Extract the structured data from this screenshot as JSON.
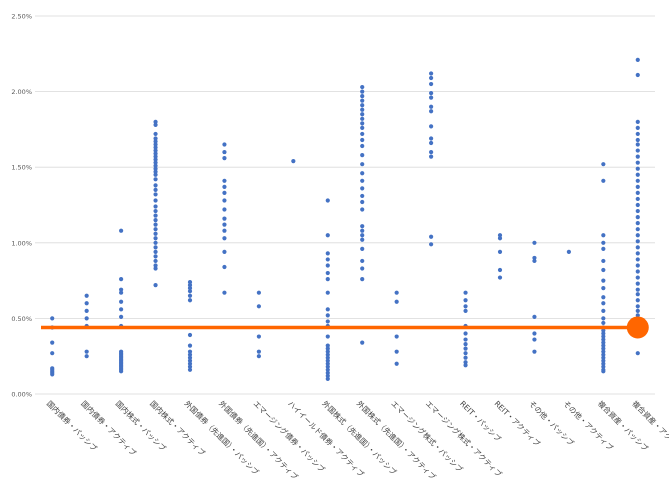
{
  "chart_data": {
    "type": "scatter",
    "categories": [
      "国内債券・パッシブ",
      "国内債券・アクティブ",
      "国内株式・パッシブ",
      "国内株式・アクティブ",
      "外国債券（先進国）・パッシブ",
      "外国債券（先進国）・アクティブ",
      "エマージング債券・パッシブ",
      "ハイイールド債券・アクティブ",
      "外国株式（先進国）・パッシブ",
      "外国株式（先進国）・アクティブ",
      "エマージング株式・パッシブ",
      "エマージング株式・アクティブ",
      "REIT・パッシブ",
      "REIT・アクティブ",
      "その他・パッシブ",
      "その他・アクティブ",
      "複合資産・パッシブ",
      "複合資産・アクティブ"
    ],
    "yticks": [
      "0.00%",
      "0.50%",
      "1.00%",
      "1.50%",
      "2.00%",
      "2.50%"
    ],
    "ylim": [
      0,
      2.5
    ],
    "grid": true,
    "colors": {
      "points": "#4472c4",
      "reference": "#ff6600",
      "grid": "#d9d9d9"
    },
    "series_points": [
      [
        0.5,
        0.44,
        0.34,
        0.27,
        0.17,
        0.16,
        0.15,
        0.14,
        0.13
      ],
      [
        0.65,
        0.6,
        0.55,
        0.5,
        0.45,
        0.28,
        0.25
      ],
      [
        1.08,
        0.76,
        0.69,
        0.67,
        0.61,
        0.56,
        0.51,
        0.45,
        0.28,
        0.27,
        0.26,
        0.25,
        0.24,
        0.23,
        0.22,
        0.21,
        0.2,
        0.19,
        0.18,
        0.17,
        0.16,
        0.15
      ],
      [
        1.8,
        1.78,
        1.72,
        1.69,
        1.67,
        1.65,
        1.63,
        1.61,
        1.59,
        1.57,
        1.55,
        1.53,
        1.51,
        1.49,
        1.47,
        1.45,
        1.42,
        1.38,
        1.35,
        1.32,
        1.28,
        1.24,
        1.21,
        1.18,
        1.15,
        1.12,
        1.09,
        1.06,
        1.03,
        1.0,
        0.97,
        0.94,
        0.91,
        0.88,
        0.85,
        0.83,
        0.72
      ],
      [
        0.74,
        0.72,
        0.7,
        0.68,
        0.65,
        0.62,
        0.39,
        0.32,
        0.28,
        0.26,
        0.24,
        0.22,
        0.2,
        0.18,
        0.16
      ],
      [
        1.65,
        1.6,
        1.56,
        1.41,
        1.37,
        1.33,
        1.28,
        1.22,
        1.16,
        1.12,
        1.08,
        1.03,
        0.94,
        0.84,
        0.67
      ],
      [
        0.67,
        0.58,
        0.38,
        0.28,
        0.25
      ],
      [
        1.54
      ],
      [
        1.28,
        1.05,
        0.93,
        0.89,
        0.85,
        0.8,
        0.76,
        0.67,
        0.56,
        0.52,
        0.48,
        0.45,
        0.38,
        0.32,
        0.3,
        0.28,
        0.26,
        0.24,
        0.22,
        0.2,
        0.18,
        0.16,
        0.14,
        0.12,
        0.1
      ],
      [
        2.03,
        2.0,
        1.97,
        1.94,
        1.91,
        1.88,
        1.85,
        1.82,
        1.79,
        1.76,
        1.72,
        1.68,
        1.64,
        1.58,
        1.52,
        1.46,
        1.41,
        1.36,
        1.31,
        1.27,
        1.22,
        1.11,
        1.08,
        1.05,
        1.02,
        0.96,
        0.88,
        0.83,
        0.76,
        0.34
      ],
      [
        0.67,
        0.61,
        0.38,
        0.28,
        0.2
      ],
      [
        2.12,
        2.09,
        2.05,
        1.99,
        1.96,
        1.9,
        1.87,
        1.77,
        1.69,
        1.66,
        1.6,
        1.57,
        1.04,
        0.99
      ],
      [
        0.67,
        0.62,
        0.58,
        0.55,
        0.45,
        0.4,
        0.36,
        0.33,
        0.3,
        0.27,
        0.24,
        0.21,
        0.19
      ],
      [
        1.05,
        1.03,
        0.94,
        0.82,
        0.77
      ],
      [
        1.0,
        0.9,
        0.88,
        0.51,
        0.4,
        0.36,
        0.28
      ],
      [
        0.94
      ],
      [
        1.52,
        1.41,
        1.05,
        1.0,
        0.96,
        0.88,
        0.82,
        0.75,
        0.7,
        0.64,
        0.6,
        0.55,
        0.5,
        0.47,
        0.44,
        0.42,
        0.4,
        0.38,
        0.36,
        0.34,
        0.32,
        0.3,
        0.28,
        0.26,
        0.24,
        0.22,
        0.2,
        0.18,
        0.16,
        0.15
      ],
      [
        2.21,
        2.11,
        1.8,
        1.76,
        1.72,
        1.68,
        1.65,
        1.61,
        1.57,
        1.53,
        1.49,
        1.45,
        1.41,
        1.37,
        1.33,
        1.29,
        1.25,
        1.21,
        1.17,
        1.13,
        1.09,
        1.05,
        1.01,
        0.97,
        0.93,
        0.89,
        0.85,
        0.81,
        0.77,
        0.73,
        0.69,
        0.66,
        0.62,
        0.58,
        0.55,
        0.52,
        0.49,
        0.46,
        0.27
      ]
    ],
    "reference_line": {
      "value": 0.44
    },
    "highlight": {
      "category_index": 17,
      "value": 0.44
    }
  }
}
